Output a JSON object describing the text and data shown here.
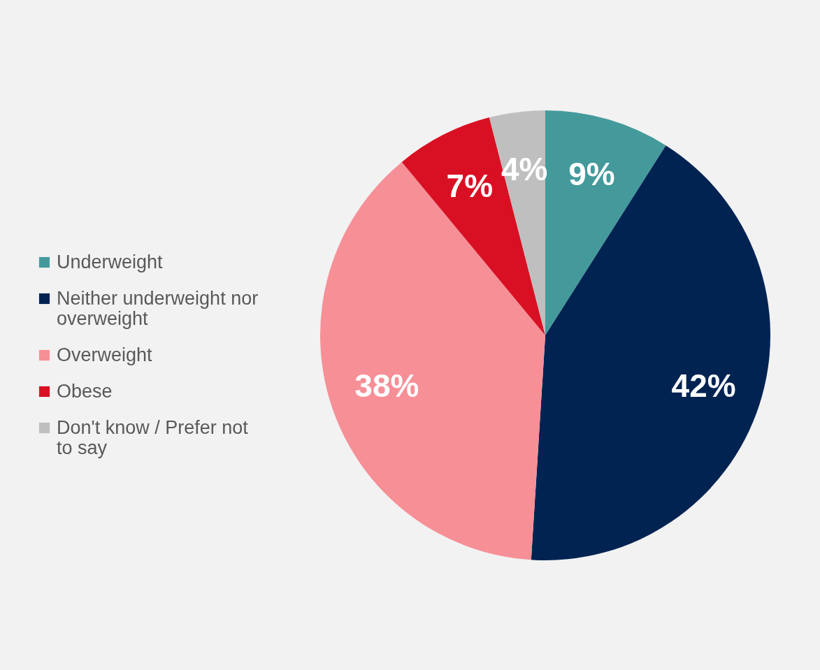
{
  "chart_data": {
    "type": "pie",
    "categories": [
      "Underweight",
      "Neither underweight nor overweight",
      "Overweight",
      "Obese",
      "Don't know / Prefer not to say"
    ],
    "values": [
      9,
      42,
      38,
      7,
      4
    ],
    "colors": [
      "#449a9b",
      "#002352",
      "#f78f97",
      "#d91023",
      "#bfbfbf"
    ],
    "value_labels": [
      "9%",
      "42%",
      "38%",
      "7%",
      "4%"
    ],
    "legend": "left"
  }
}
